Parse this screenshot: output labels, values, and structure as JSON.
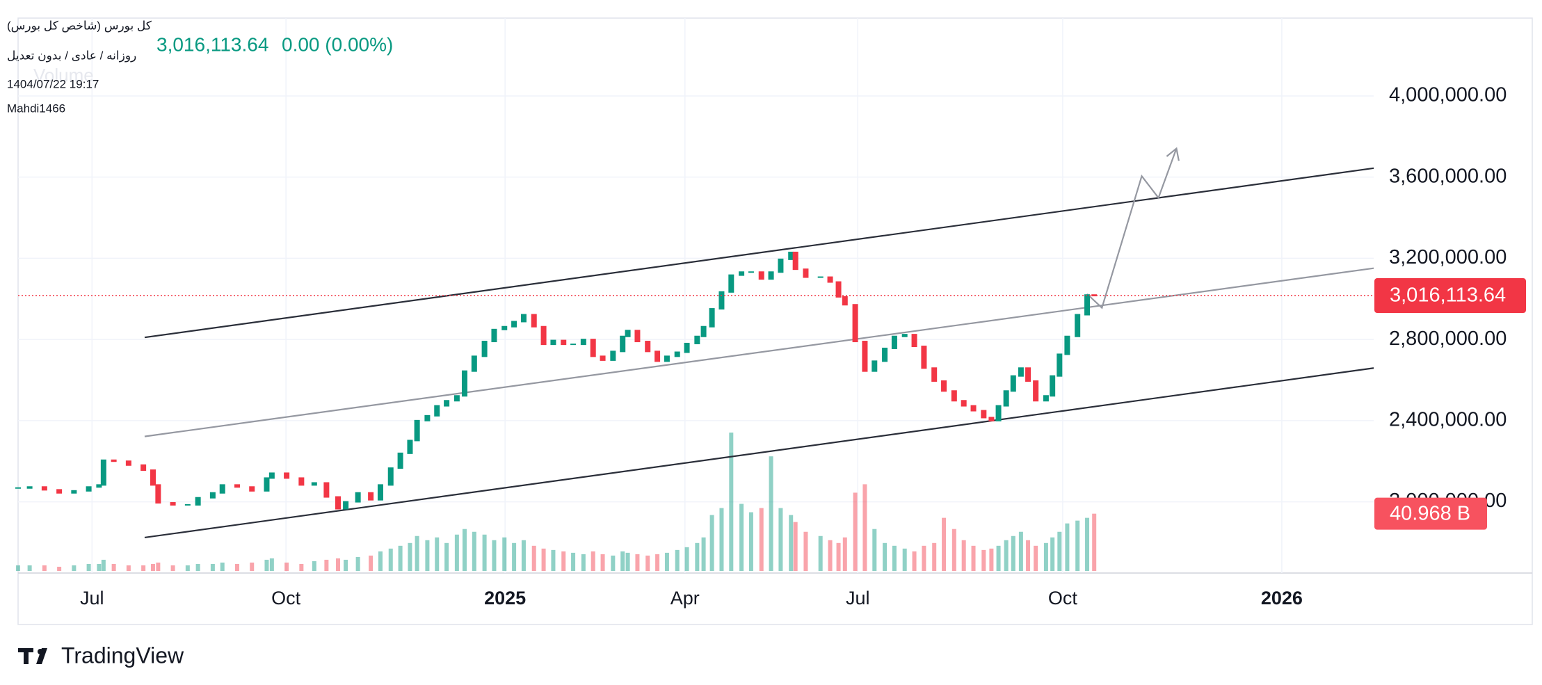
{
  "chart_data": {
    "type": "candlestick",
    "title": "کل بورس (شاخص کل بورس)",
    "subtitle": "روزانه / عادی / بدون تعدیل",
    "timestamp": "1404/07/22 19:17",
    "author": "Mahdi1466",
    "last_price": 3016113.64,
    "last_price_label": "3,016,113.64",
    "change_label": "0.00 (0.00%)",
    "volume_title": "Volume",
    "volume_label": "40.968 B",
    "brand": "TradingView",
    "up_color": "#089981",
    "down_color": "#f23645",
    "grid": true,
    "x": [
      -1.15,
      -0.97,
      -0.74,
      -0.51,
      -0.28,
      -0.05,
      0.11,
      0.18,
      0.34,
      0.57,
      0.8,
      0.95,
      1.03,
      1.26,
      1.49,
      1.65,
      1.88,
      2.03,
      2.26,
      2.49,
      2.72,
      2.8,
      3.03,
      3.26,
      3.46,
      3.65,
      3.83,
      3.95,
      4.14,
      4.34,
      4.49,
      4.65,
      4.8,
      4.95,
      5.06,
      5.22,
      5.37,
      5.52,
      5.68,
      5.8,
      5.95,
      6.11,
      6.26,
      6.42,
      6.57,
      6.72,
      6.88,
      7.03,
      7.18,
      7.34,
      7.49,
      7.65,
      7.8,
      7.95,
      8.11,
      8.26,
      8.34,
      8.49,
      8.65,
      8.8,
      8.95,
      9.11,
      9.26,
      9.42,
      9.52,
      9.65,
      9.8,
      9.95,
      10.11,
      10.26,
      10.42,
      10.57,
      10.72,
      10.88,
      10.95,
      11.11,
      11.34,
      11.49,
      11.62,
      11.72,
      11.88,
      12.03,
      12.18,
      12.34,
      12.49,
      12.65,
      12.8,
      12.95,
      13.11,
      13.26,
      13.42,
      13.57,
      13.72,
      13.88,
      14,
      14.11,
      14.23,
      14.34,
      14.46,
      14.57,
      14.69,
      14.85,
      14.95,
      15.06,
      15.18,
      15.34,
      15.49,
      15.6
    ],
    "values": [
      2068000,
      2073000,
      2059000,
      2044000,
      2054000,
      2073000,
      2083000,
      2205000,
      2200000,
      2181000,
      2156000,
      2083000,
      1995000,
      1985000,
      1985000,
      2020000,
      2044000,
      2083000,
      2073000,
      2054000,
      2117000,
      2141000,
      2117000,
      2083000,
      2093000,
      2024000,
      1966000,
      2000000,
      2044000,
      2010000,
      2083000,
      2166000,
      2239000,
      2302000,
      2400000,
      2424000,
      2473000,
      2498000,
      2522000,
      2644000,
      2717000,
      2790000,
      2849000,
      2863000,
      2888000,
      2922000,
      2863000,
      2776000,
      2795000,
      2776000,
      2776000,
      2800000,
      2717000,
      2698000,
      2741000,
      2815000,
      2844000,
      2790000,
      2741000,
      2693000,
      2717000,
      2737000,
      2780000,
      2815000,
      2863000,
      2951000,
      3034000,
      3117000,
      3132000,
      3132000,
      3098000,
      3132000,
      3195000,
      3229000,
      3146000,
      3107000,
      3107000,
      3083000,
      3010000,
      2971000,
      2790000,
      2644000,
      2693000,
      2756000,
      2815000,
      2824000,
      2766000,
      2659000,
      2595000,
      2546000,
      2498000,
      2473000,
      2449000,
      2415000,
      2400000,
      2473000,
      2546000,
      2620000,
      2659000,
      2595000,
      2498000,
      2522000,
      2620000,
      2727000,
      2815000,
      2922000,
      3019000,
      3016113.64
    ],
    "volume": [
      4,
      4,
      4,
      3,
      4,
      5,
      5,
      8,
      5,
      4,
      4,
      5,
      6,
      4,
      4,
      5,
      5,
      6,
      5,
      6,
      8,
      9,
      6,
      5,
      7,
      8,
      9,
      8,
      10,
      11,
      14,
      16,
      18,
      20,
      25,
      22,
      24,
      20,
      26,
      30,
      28,
      26,
      22,
      24,
      20,
      22,
      18,
      16,
      15,
      14,
      13,
      12,
      14,
      12,
      11,
      14,
      13,
      12,
      11,
      12,
      13,
      15,
      17,
      20,
      24,
      40,
      45,
      99,
      48,
      42,
      45,
      82,
      45,
      40,
      35,
      28,
      25,
      22,
      20,
      24,
      56,
      62,
      30,
      20,
      18,
      16,
      14,
      18,
      20,
      38,
      30,
      22,
      18,
      15,
      16,
      18,
      22,
      25,
      28,
      22,
      18,
      20,
      24,
      28,
      34,
      36,
      38,
      40.968
    ],
    "xlim": [
      -1.15,
      19.95
    ],
    "xticks": [
      {
        "value": 0,
        "label": "Jul"
      },
      {
        "value": 3.02,
        "label": "Oct"
      },
      {
        "value": 6.43,
        "label": "2025"
      },
      {
        "value": 9.23,
        "label": "Apr"
      },
      {
        "value": 11.92,
        "label": "Jul"
      },
      {
        "value": 15.11,
        "label": "Oct"
      },
      {
        "value": 18.52,
        "label": "2026"
      }
    ],
    "ylim": [
      1649000,
      4385000
    ],
    "yticks": [
      {
        "value": 2000000,
        "label": "2,000,000.00"
      },
      {
        "value": 2400000,
        "label": "2,400,000.00"
      },
      {
        "value": 2800000,
        "label": "2,800,000.00"
      },
      {
        "value": 3200000,
        "label": "3,200,000.00"
      },
      {
        "value": 3600000,
        "label": "3,600,000.00"
      },
      {
        "value": 4000000,
        "label": "4,000,000.00"
      }
    ],
    "trend_lines": [
      {
        "x": [
          0.82,
          19.95
        ],
        "values": [
          2810000,
          3644000
        ],
        "color": "#2a2e39"
      },
      {
        "x": [
          0.82,
          19.95
        ],
        "values": [
          2322000,
          3151000
        ],
        "color": "#9598a1"
      },
      {
        "x": [
          0.82,
          19.95
        ],
        "values": [
          1824000,
          2659000
        ],
        "color": "#2a2e39"
      }
    ],
    "projection": {
      "x": [
        15.49,
        15.72,
        16.34,
        16.6,
        16.88
      ],
      "values": [
        3024000,
        2956000,
        3605000,
        3498000,
        3741000
      ],
      "color": "#9598a1"
    }
  }
}
